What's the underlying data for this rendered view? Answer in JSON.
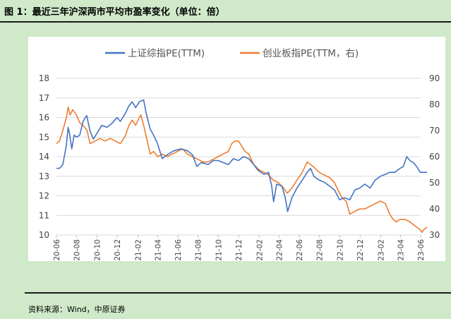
{
  "figure": {
    "title": "图 1：最近三年沪深两市平均市盈率变化（单位：倍）",
    "source": "资料来源：Wind，中原证券"
  },
  "colors": {
    "background": "#cfe9c9",
    "series_blue": "#4472c4",
    "series_orange": "#ed7d31",
    "grid": "#d9d9d9"
  },
  "chart_data": {
    "type": "line",
    "x_ticks": [
      "2020-06",
      "2020-08",
      "2020-10",
      "2020-12",
      "2021-02",
      "2021-04",
      "2021-06",
      "2021-08",
      "2021-10",
      "2021-12",
      "2022-02",
      "2022-04",
      "2022-06",
      "2022-08",
      "2022-10",
      "2022-12",
      "2023-02",
      "2023-04",
      "2023-06"
    ],
    "y_left": {
      "min": 10,
      "max": 18,
      "ticks": [
        10,
        11,
        12,
        13,
        14,
        15,
        16,
        17,
        18
      ]
    },
    "y_right": {
      "min": 30,
      "max": 90,
      "ticks": [
        30,
        40,
        50,
        60,
        70,
        80,
        90
      ]
    },
    "grid": true,
    "legend_position": "top",
    "series": [
      {
        "name": "上证综指PE(TTM)",
        "axis": "left",
        "color": "#4472c4",
        "points": [
          [
            "2020-06-01",
            13.4
          ],
          [
            "2020-06-10",
            13.4
          ],
          [
            "2020-06-20",
            13.6
          ],
          [
            "2020-07-01",
            14.6
          ],
          [
            "2020-07-06",
            15.5
          ],
          [
            "2020-07-10",
            15.2
          ],
          [
            "2020-07-17",
            14.4
          ],
          [
            "2020-07-24",
            15.1
          ],
          [
            "2020-08-01",
            15.0
          ],
          [
            "2020-08-10",
            15.1
          ],
          [
            "2020-08-20",
            15.8
          ],
          [
            "2020-08-31",
            16.1
          ],
          [
            "2020-09-10",
            15.3
          ],
          [
            "2020-09-20",
            14.9
          ],
          [
            "2020-10-01",
            15.2
          ],
          [
            "2020-10-15",
            15.6
          ],
          [
            "2020-10-31",
            15.5
          ],
          [
            "2020-11-15",
            15.7
          ],
          [
            "2020-11-30",
            16.0
          ],
          [
            "2020-12-10",
            15.8
          ],
          [
            "2020-12-25",
            16.2
          ],
          [
            "2021-01-05",
            16.6
          ],
          [
            "2021-01-15",
            16.8
          ],
          [
            "2021-01-25",
            16.5
          ],
          [
            "2021-02-05",
            16.8
          ],
          [
            "2021-02-18",
            16.9
          ],
          [
            "2021-02-26",
            16.2
          ],
          [
            "2021-03-10",
            15.4
          ],
          [
            "2021-03-20",
            15.1
          ],
          [
            "2021-03-31",
            14.7
          ],
          [
            "2021-04-15",
            13.9
          ],
          [
            "2021-04-30",
            14.1
          ],
          [
            "2021-05-20",
            14.3
          ],
          [
            "2021-06-10",
            14.4
          ],
          [
            "2021-06-30",
            14.3
          ],
          [
            "2021-07-15",
            14.1
          ],
          [
            "2021-07-28",
            13.5
          ],
          [
            "2021-08-10",
            13.7
          ],
          [
            "2021-08-31",
            13.6
          ],
          [
            "2021-09-15",
            13.8
          ],
          [
            "2021-09-30",
            13.8
          ],
          [
            "2021-10-15",
            13.7
          ],
          [
            "2021-10-31",
            13.6
          ],
          [
            "2021-11-15",
            13.9
          ],
          [
            "2021-11-30",
            13.8
          ],
          [
            "2021-12-15",
            14.0
          ],
          [
            "2021-12-31",
            13.9
          ],
          [
            "2022-01-15",
            13.6
          ],
          [
            "2022-01-28",
            13.3
          ],
          [
            "2022-02-15",
            13.1
          ],
          [
            "2022-03-01",
            13.2
          ],
          [
            "2022-03-10",
            12.5
          ],
          [
            "2022-03-16",
            11.7
          ],
          [
            "2022-03-25",
            12.6
          ],
          [
            "2022-04-10",
            12.5
          ],
          [
            "2022-04-20",
            11.9
          ],
          [
            "2022-04-27",
            11.2
          ],
          [
            "2022-05-10",
            11.9
          ],
          [
            "2022-05-25",
            12.4
          ],
          [
            "2022-06-10",
            12.8
          ],
          [
            "2022-06-25",
            13.2
          ],
          [
            "2022-07-05",
            13.4
          ],
          [
            "2022-07-15",
            13.0
          ],
          [
            "2022-07-31",
            12.8
          ],
          [
            "2022-08-15",
            12.7
          ],
          [
            "2022-08-31",
            12.5
          ],
          [
            "2022-09-15",
            12.3
          ],
          [
            "2022-09-30",
            11.8
          ],
          [
            "2022-10-15",
            11.9
          ],
          [
            "2022-10-31",
            11.8
          ],
          [
            "2022-11-15",
            12.3
          ],
          [
            "2022-11-30",
            12.4
          ],
          [
            "2022-12-15",
            12.6
          ],
          [
            "2022-12-31",
            12.4
          ],
          [
            "2023-01-15",
            12.8
          ],
          [
            "2023-01-31",
            13.0
          ],
          [
            "2023-02-15",
            13.1
          ],
          [
            "2023-02-28",
            13.2
          ],
          [
            "2023-03-15",
            13.2
          ],
          [
            "2023-03-31",
            13.4
          ],
          [
            "2023-04-10",
            13.5
          ],
          [
            "2023-04-20",
            14.0
          ],
          [
            "2023-04-30",
            13.8
          ],
          [
            "2023-05-10",
            13.7
          ],
          [
            "2023-05-20",
            13.5
          ],
          [
            "2023-05-31",
            13.2
          ],
          [
            "2023-06-10",
            13.2
          ],
          [
            "2023-06-20",
            13.2
          ]
        ]
      },
      {
        "name": "创业板指PE(TTM，右)",
        "axis": "right",
        "color": "#ed7d31",
        "points": [
          [
            "2020-06-01",
            65
          ],
          [
            "2020-06-10",
            66
          ],
          [
            "2020-06-20",
            70
          ],
          [
            "2020-07-01",
            75
          ],
          [
            "2020-07-06",
            79
          ],
          [
            "2020-07-12",
            76
          ],
          [
            "2020-07-20",
            78
          ],
          [
            "2020-07-31",
            76
          ],
          [
            "2020-08-10",
            73
          ],
          [
            "2020-08-20",
            72
          ],
          [
            "2020-09-01",
            70
          ],
          [
            "2020-09-10",
            65
          ],
          [
            "2020-09-25",
            66
          ],
          [
            "2020-10-10",
            67
          ],
          [
            "2020-10-25",
            66
          ],
          [
            "2020-11-10",
            67
          ],
          [
            "2020-11-25",
            66
          ],
          [
            "2020-12-10",
            65
          ],
          [
            "2020-12-25",
            68
          ],
          [
            "2021-01-05",
            72
          ],
          [
            "2021-01-15",
            74
          ],
          [
            "2021-01-25",
            72
          ],
          [
            "2021-02-05",
            75
          ],
          [
            "2021-02-10",
            76
          ],
          [
            "2021-02-18",
            72
          ],
          [
            "2021-03-01",
            66
          ],
          [
            "2021-03-10",
            61
          ],
          [
            "2021-03-20",
            62
          ],
          [
            "2021-04-01",
            60
          ],
          [
            "2021-04-15",
            61
          ],
          [
            "2021-04-30",
            60
          ],
          [
            "2021-05-15",
            61
          ],
          [
            "2021-05-31",
            62
          ],
          [
            "2021-06-15",
            63
          ],
          [
            "2021-06-30",
            61
          ],
          [
            "2021-07-15",
            60
          ],
          [
            "2021-07-31",
            59
          ],
          [
            "2021-08-15",
            58
          ],
          [
            "2021-08-31",
            58
          ],
          [
            "2021-09-15",
            59
          ],
          [
            "2021-09-30",
            60
          ],
          [
            "2021-10-15",
            61
          ],
          [
            "2021-10-31",
            62
          ],
          [
            "2021-11-10",
            65
          ],
          [
            "2021-11-20",
            66
          ],
          [
            "2021-11-30",
            66
          ],
          [
            "2021-12-10",
            64
          ],
          [
            "2021-12-20",
            62
          ],
          [
            "2021-12-31",
            61
          ],
          [
            "2022-01-15",
            57
          ],
          [
            "2022-01-31",
            55
          ],
          [
            "2022-02-15",
            54
          ],
          [
            "2022-03-01",
            53
          ],
          [
            "2022-03-15",
            51
          ],
          [
            "2022-03-31",
            50
          ],
          [
            "2022-04-15",
            48
          ],
          [
            "2022-04-26",
            46
          ],
          [
            "2022-05-10",
            48
          ],
          [
            "2022-05-25",
            51
          ],
          [
            "2022-06-10",
            54
          ],
          [
            "2022-06-25",
            58
          ],
          [
            "2022-07-05",
            57
          ],
          [
            "2022-07-15",
            56
          ],
          [
            "2022-07-31",
            54
          ],
          [
            "2022-08-15",
            53
          ],
          [
            "2022-08-31",
            52
          ],
          [
            "2022-09-15",
            50
          ],
          [
            "2022-09-30",
            46
          ],
          [
            "2022-10-10",
            44
          ],
          [
            "2022-10-20",
            43
          ],
          [
            "2022-10-31",
            38
          ],
          [
            "2022-11-15",
            39
          ],
          [
            "2022-11-30",
            40
          ],
          [
            "2022-12-15",
            40
          ],
          [
            "2022-12-31",
            41
          ],
          [
            "2023-01-15",
            42
          ],
          [
            "2023-01-31",
            43
          ],
          [
            "2023-02-15",
            42
          ],
          [
            "2023-02-28",
            38
          ],
          [
            "2023-03-10",
            36
          ],
          [
            "2023-03-20",
            35
          ],
          [
            "2023-03-31",
            36
          ],
          [
            "2023-04-15",
            36
          ],
          [
            "2023-04-30",
            35
          ],
          [
            "2023-05-10",
            34
          ],
          [
            "2023-05-20",
            33
          ],
          [
            "2023-05-31",
            32
          ],
          [
            "2023-06-05",
            31
          ],
          [
            "2023-06-10",
            32
          ],
          [
            "2023-06-20",
            33
          ]
        ]
      }
    ]
  }
}
